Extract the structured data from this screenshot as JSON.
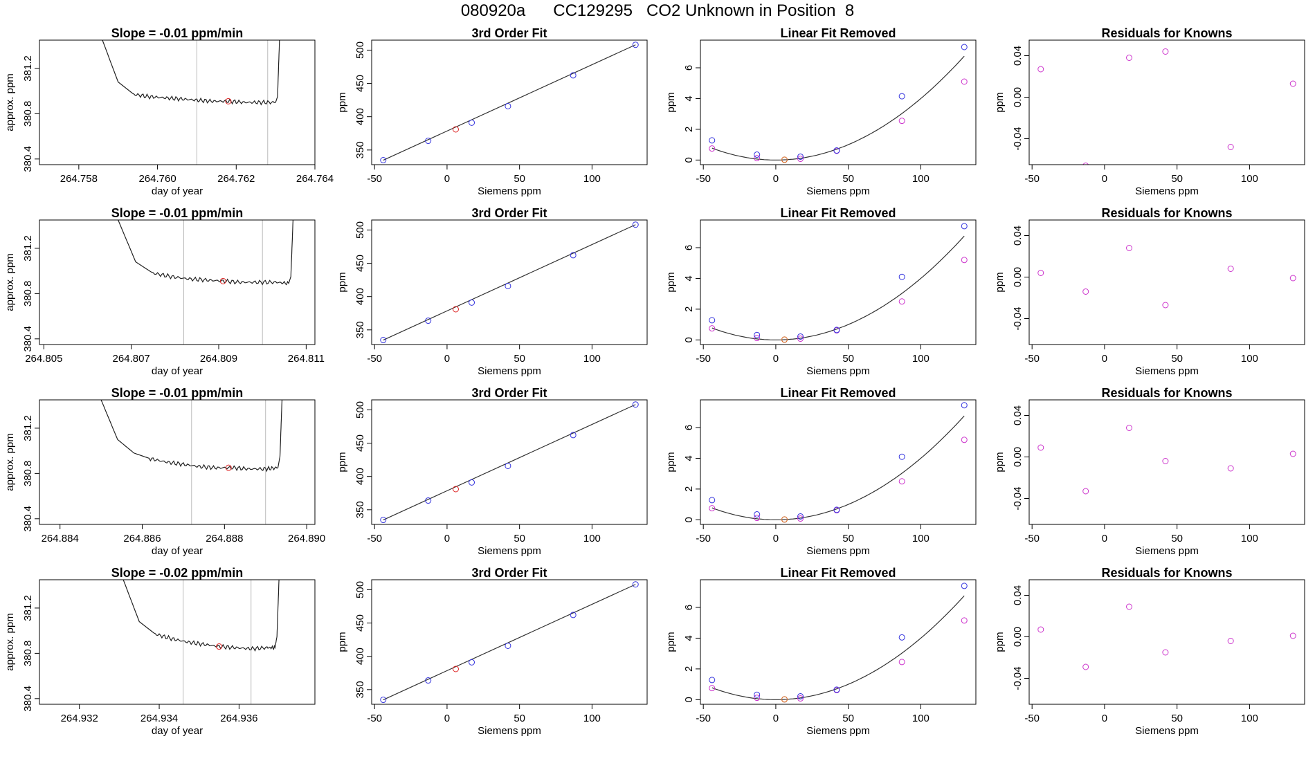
{
  "title": "080920a      CC129295   CO2 Unknown in Position  8",
  "colors": {
    "axis": "#000000",
    "trace": "#222222",
    "vline": "#bbbbbb",
    "knowns": "#3333dd",
    "unknown_fit": "#dd2222",
    "unknown_lin": "#ee7711",
    "residual": "#cc33cc",
    "fitline": "#333333"
  },
  "chart_data": [
    {
      "row": 0,
      "type": "line",
      "panel": "trace",
      "title": "Slope =  -0.01  ppm/min",
      "xlabel": "day of year",
      "ylabel": "approx. ppm",
      "xlim": [
        264.757,
        264.764
      ],
      "ylim": [
        380.35,
        381.45
      ],
      "xticks": [
        264.758,
        264.76,
        264.762,
        264.764
      ],
      "xtick_labels": [
        "264.758",
        "264.760",
        "264.762",
        "264.764"
      ],
      "yticks": [
        380.4,
        380.8,
        381.2
      ],
      "ytick_labels": [
        "380.4",
        "380.8",
        "381.2"
      ],
      "trace_x": [
        264.7586,
        264.759,
        264.7594,
        264.7598,
        264.7602,
        264.7606,
        264.761,
        264.7614,
        264.7618,
        264.7622,
        264.7626,
        264.763,
        264.76305,
        264.7631
      ],
      "trace_y": [
        381.45,
        381.08,
        380.97,
        380.95,
        380.94,
        380.93,
        380.92,
        380.91,
        380.91,
        380.9,
        380.9,
        380.9,
        380.95,
        381.45
      ],
      "vlines": [
        264.761,
        264.7628
      ],
      "marker": {
        "x": 264.7618,
        "y": 380.91
      }
    },
    {
      "row": 0,
      "type": "scatter",
      "panel": "fit",
      "title": "3rd Order Fit",
      "xlabel": "Siemens ppm",
      "ylabel": "ppm",
      "xlim": [
        -52,
        138
      ],
      "ylim": [
        328,
        515
      ],
      "xticks": [
        -50,
        0,
        50,
        100
      ],
      "yticks": [
        350,
        400,
        450,
        500
      ],
      "knowns_x": [
        -44,
        -13,
        17,
        42,
        87,
        130
      ],
      "knowns_y": [
        334.7,
        363.8,
        391.0,
        415.8,
        462.1,
        508.0
      ],
      "unknown": {
        "x": 6,
        "y": 381
      },
      "line": [
        [
          -44,
          334.7
        ],
        [
          130,
          508.0
        ]
      ]
    },
    {
      "row": 0,
      "type": "scatter",
      "panel": "linear_removed",
      "title": "Linear Fit Removed",
      "xlabel": "Siemens ppm",
      "ylabel": "ppm",
      "xlim": [
        -52,
        138
      ],
      "ylim": [
        -0.3,
        7.8
      ],
      "xticks": [
        -50,
        0,
        50,
        100
      ],
      "yticks": [
        0,
        2,
        4,
        6
      ],
      "blue_x": [
        -44,
        -13,
        6,
        17,
        42,
        87,
        130
      ],
      "blue_y": [
        1.28,
        0.35,
        0.02,
        0.22,
        0.62,
        4.15,
        7.35
      ],
      "purple_x": [
        -44,
        -13,
        17,
        42,
        87,
        130
      ],
      "purple_y": [
        0.75,
        0.12,
        0.08,
        0.6,
        2.55,
        5.1
      ],
      "orange": {
        "x": 6,
        "y": 0.02
      },
      "curve": [
        0.0004,
        0,
        0
      ]
    },
    {
      "row": 0,
      "type": "scatter",
      "panel": "residuals",
      "title": "Residuals for Knowns",
      "xlabel": "Siemens ppm",
      "ylabel": "ppm",
      "xlim": [
        -52,
        138
      ],
      "ylim": [
        -0.065,
        0.055
      ],
      "xticks": [
        -50,
        0,
        50,
        100
      ],
      "yticks": [
        -0.04,
        0.0,
        0.04
      ],
      "ytick_labels": [
        "-0.04",
        "0.00",
        "0.04"
      ],
      "x": [
        -44,
        -13,
        17,
        42,
        87,
        130
      ],
      "y": [
        0.027,
        -0.066,
        0.038,
        0.044,
        -0.048,
        0.013
      ]
    },
    {
      "row": 1,
      "type": "line",
      "panel": "trace",
      "title": "Slope =  -0.01  ppm/min",
      "xlabel": "day of year",
      "ylabel": "approx. ppm",
      "xlim": [
        264.8049,
        264.8112
      ],
      "ylim": [
        380.35,
        381.45
      ],
      "xticks": [
        264.805,
        264.807,
        264.809,
        264.811
      ],
      "xtick_labels": [
        "264.805",
        "264.807",
        "264.809",
        "264.811"
      ],
      "yticks": [
        380.4,
        380.8,
        381.2
      ],
      "ytick_labels": [
        "380.4",
        "380.8",
        "381.2"
      ],
      "trace_x": [
        264.8067,
        264.8071,
        264.8075,
        264.8079,
        264.8083,
        264.8087,
        264.8091,
        264.8095,
        264.8099,
        264.8103,
        264.8106,
        264.81065,
        264.8107
      ],
      "trace_y": [
        381.45,
        381.08,
        380.98,
        380.95,
        380.93,
        380.92,
        380.91,
        380.9,
        380.9,
        380.9,
        380.89,
        380.95,
        381.45
      ],
      "vlines": [
        264.8082,
        264.81
      ],
      "marker": {
        "x": 264.8091,
        "y": 380.91
      }
    },
    {
      "row": 1,
      "type": "scatter",
      "panel": "fit",
      "title": "3rd Order Fit",
      "xlabel": "Siemens ppm",
      "ylabel": "ppm",
      "xlim": [
        -52,
        138
      ],
      "ylim": [
        328,
        515
      ],
      "xticks": [
        -50,
        0,
        50,
        100
      ],
      "yticks": [
        350,
        400,
        450,
        500
      ],
      "knowns_x": [
        -44,
        -13,
        17,
        42,
        87,
        130
      ],
      "knowns_y": [
        334.7,
        363.8,
        391.0,
        415.8,
        462.1,
        508.0
      ],
      "unknown": {
        "x": 6,
        "y": 381
      },
      "line": [
        [
          -44,
          334.7
        ],
        [
          130,
          508.0
        ]
      ]
    },
    {
      "row": 1,
      "type": "scatter",
      "panel": "linear_removed",
      "title": "Linear Fit Removed",
      "xlabel": "Siemens ppm",
      "ylabel": "ppm",
      "xlim": [
        -52,
        138
      ],
      "ylim": [
        -0.3,
        7.8
      ],
      "xticks": [
        -50,
        0,
        50,
        100
      ],
      "yticks": [
        0,
        2,
        4,
        6
      ],
      "blue_x": [
        -44,
        -13,
        6,
        17,
        42,
        87,
        130
      ],
      "blue_y": [
        1.28,
        0.32,
        0.02,
        0.22,
        0.65,
        4.1,
        7.4
      ],
      "purple_x": [
        -44,
        -13,
        17,
        42,
        87,
        130
      ],
      "purple_y": [
        0.75,
        0.12,
        0.08,
        0.62,
        2.5,
        5.2
      ],
      "orange": {
        "x": 6,
        "y": 0.02
      },
      "curve": [
        0.0004,
        0,
        0
      ]
    },
    {
      "row": 1,
      "type": "scatter",
      "panel": "residuals",
      "title": "Residuals for Knowns",
      "xlabel": "Siemens ppm",
      "ylabel": "ppm",
      "xlim": [
        -52,
        138
      ],
      "ylim": [
        -0.065,
        0.055
      ],
      "xticks": [
        -50,
        0,
        50,
        100
      ],
      "yticks": [
        -0.04,
        0.0,
        0.04
      ],
      "ytick_labels": [
        "-0.04",
        "0.00",
        "0.04"
      ],
      "x": [
        -44,
        -13,
        17,
        42,
        87,
        130
      ],
      "y": [
        0.004,
        -0.014,
        0.028,
        -0.027,
        0.008,
        -0.001
      ]
    },
    {
      "row": 2,
      "type": "line",
      "panel": "trace",
      "title": "Slope =  -0.01  ppm/min",
      "xlabel": "day of year",
      "ylabel": "approx. ppm",
      "xlim": [
        264.8835,
        264.8902
      ],
      "ylim": [
        380.35,
        381.45
      ],
      "xticks": [
        264.884,
        264.886,
        264.888,
        264.89
      ],
      "xtick_labels": [
        "264.884",
        "264.886",
        "264.888",
        "264.890"
      ],
      "trace_x": [
        264.885,
        264.8854,
        264.8858,
        264.8862,
        264.8866,
        264.887,
        264.8874,
        264.8878,
        264.8882,
        264.8886,
        264.889,
        264.8893,
        264.88935,
        264.8894
      ],
      "trace_y": [
        381.45,
        381.1,
        380.98,
        380.93,
        380.9,
        380.88,
        380.86,
        380.85,
        380.85,
        380.84,
        380.84,
        380.85,
        380.95,
        381.45
      ],
      "yticks": [
        380.4,
        380.8,
        381.2
      ],
      "ytick_labels": [
        "380.4",
        "380.8",
        "381.2"
      ],
      "vlines": [
        264.8872,
        264.889
      ],
      "marker": {
        "x": 264.8881,
        "y": 380.85
      }
    },
    {
      "row": 2,
      "type": "scatter",
      "panel": "fit",
      "title": "3rd Order Fit",
      "xlabel": "Siemens ppm",
      "ylabel": "ppm",
      "xlim": [
        -52,
        138
      ],
      "ylim": [
        328,
        515
      ],
      "xticks": [
        -50,
        0,
        50,
        100
      ],
      "yticks": [
        350,
        400,
        450,
        500
      ],
      "knowns_x": [
        -44,
        -13,
        17,
        42,
        87,
        130
      ],
      "knowns_y": [
        334.7,
        363.8,
        391.0,
        415.8,
        462.1,
        508.0
      ],
      "unknown": {
        "x": 6,
        "y": 381
      },
      "line": [
        [
          -44,
          334.7
        ],
        [
          130,
          508.0
        ]
      ]
    },
    {
      "row": 2,
      "type": "scatter",
      "panel": "linear_removed",
      "title": "Linear Fit Removed",
      "xlabel": "Siemens ppm",
      "ylabel": "ppm",
      "xlim": [
        -52,
        138
      ],
      "ylim": [
        -0.3,
        7.8
      ],
      "xticks": [
        -50,
        0,
        50,
        100
      ],
      "yticks": [
        0,
        2,
        4,
        6
      ],
      "blue_x": [
        -44,
        -13,
        6,
        17,
        42,
        87,
        130
      ],
      "blue_y": [
        1.28,
        0.35,
        0.02,
        0.22,
        0.65,
        4.1,
        7.45
      ],
      "purple_x": [
        -44,
        -13,
        17,
        42,
        87,
        130
      ],
      "purple_y": [
        0.75,
        0.12,
        0.08,
        0.62,
        2.5,
        5.2
      ],
      "orange": {
        "x": 6,
        "y": 0.02
      },
      "curve": [
        0.0004,
        0,
        0
      ]
    },
    {
      "row": 2,
      "type": "scatter",
      "panel": "residuals",
      "title": "Residuals for Knowns",
      "xlabel": "Siemens ppm",
      "ylabel": "ppm",
      "xlim": [
        -52,
        138
      ],
      "ylim": [
        -0.065,
        0.055
      ],
      "xticks": [
        -50,
        0,
        50,
        100
      ],
      "yticks": [
        -0.04,
        0.0,
        0.04
      ],
      "ytick_labels": [
        "-0.04",
        "0.00",
        "0.04"
      ],
      "x": [
        -44,
        -13,
        17,
        42,
        87,
        130
      ],
      "y": [
        0.009,
        -0.033,
        0.028,
        -0.004,
        -0.011,
        0.003
      ]
    },
    {
      "row": 3,
      "type": "line",
      "panel": "trace",
      "title": "Slope =  -0.02  ppm/min",
      "xlabel": "day of year",
      "ylabel": "approx. ppm",
      "xlim": [
        264.931,
        264.9379
      ],
      "ylim": [
        380.35,
        381.45
      ],
      "xticks": [
        264.932,
        264.934,
        264.936
      ],
      "xtick_labels": [
        "264.932",
        "264.934",
        "264.936"
      ],
      "yticks": [
        380.4,
        380.8,
        381.2
      ],
      "ytick_labels": [
        "380.4",
        "380.8",
        "381.2"
      ],
      "trace_x": [
        264.9331,
        264.9335,
        264.9339,
        264.9343,
        264.9347,
        264.9351,
        264.9355,
        264.9359,
        264.9363,
        264.9367,
        264.9369,
        264.93695,
        264.937
      ],
      "trace_y": [
        381.45,
        381.08,
        380.97,
        380.93,
        380.9,
        380.88,
        380.86,
        380.85,
        380.84,
        380.85,
        380.85,
        380.95,
        381.45
      ],
      "vlines": [
        264.9346,
        264.9363
      ],
      "marker": {
        "x": 264.9355,
        "y": 380.86
      }
    },
    {
      "row": 3,
      "type": "scatter",
      "panel": "fit",
      "title": "3rd Order Fit",
      "xlabel": "Siemens ppm",
      "ylabel": "ppm",
      "xlim": [
        -52,
        138
      ],
      "ylim": [
        328,
        515
      ],
      "xticks": [
        -50,
        0,
        50,
        100
      ],
      "yticks": [
        350,
        400,
        450,
        500
      ],
      "knowns_x": [
        -44,
        -13,
        17,
        42,
        87,
        130
      ],
      "knowns_y": [
        334.7,
        363.8,
        391.0,
        415.8,
        462.1,
        508.0
      ],
      "unknown": {
        "x": 6,
        "y": 381
      },
      "line": [
        [
          -44,
          334.7
        ],
        [
          130,
          508.0
        ]
      ]
    },
    {
      "row": 3,
      "type": "scatter",
      "panel": "linear_removed",
      "title": "Linear Fit Removed",
      "xlabel": "Siemens ppm",
      "ylabel": "ppm",
      "xlim": [
        -52,
        138
      ],
      "ylim": [
        -0.3,
        7.8
      ],
      "xticks": [
        -50,
        0,
        50,
        100
      ],
      "yticks": [
        0,
        2,
        4,
        6
      ],
      "blue_x": [
        -44,
        -13,
        6,
        17,
        42,
        87,
        130
      ],
      "blue_y": [
        1.28,
        0.32,
        0.02,
        0.22,
        0.65,
        4.05,
        7.4
      ],
      "purple_x": [
        -44,
        -13,
        17,
        42,
        87,
        130
      ],
      "purple_y": [
        0.75,
        0.12,
        0.08,
        0.62,
        2.45,
        5.15
      ],
      "orange": {
        "x": 6,
        "y": 0.02
      },
      "curve": [
        0.0004,
        0,
        0
      ]
    },
    {
      "row": 3,
      "type": "scatter",
      "panel": "residuals",
      "title": "Residuals for Knowns",
      "xlabel": "Siemens ppm",
      "ylabel": "ppm",
      "xlim": [
        -52,
        138
      ],
      "ylim": [
        -0.065,
        0.055
      ],
      "xticks": [
        -50,
        0,
        50,
        100
      ],
      "yticks": [
        -0.04,
        0.0,
        0.04
      ],
      "ytick_labels": [
        "-0.04",
        "0.00",
        "0.04"
      ],
      "x": [
        -44,
        -13,
        17,
        42,
        87,
        130
      ],
      "y": [
        0.007,
        -0.029,
        0.029,
        -0.015,
        -0.004,
        0.001
      ]
    }
  ]
}
